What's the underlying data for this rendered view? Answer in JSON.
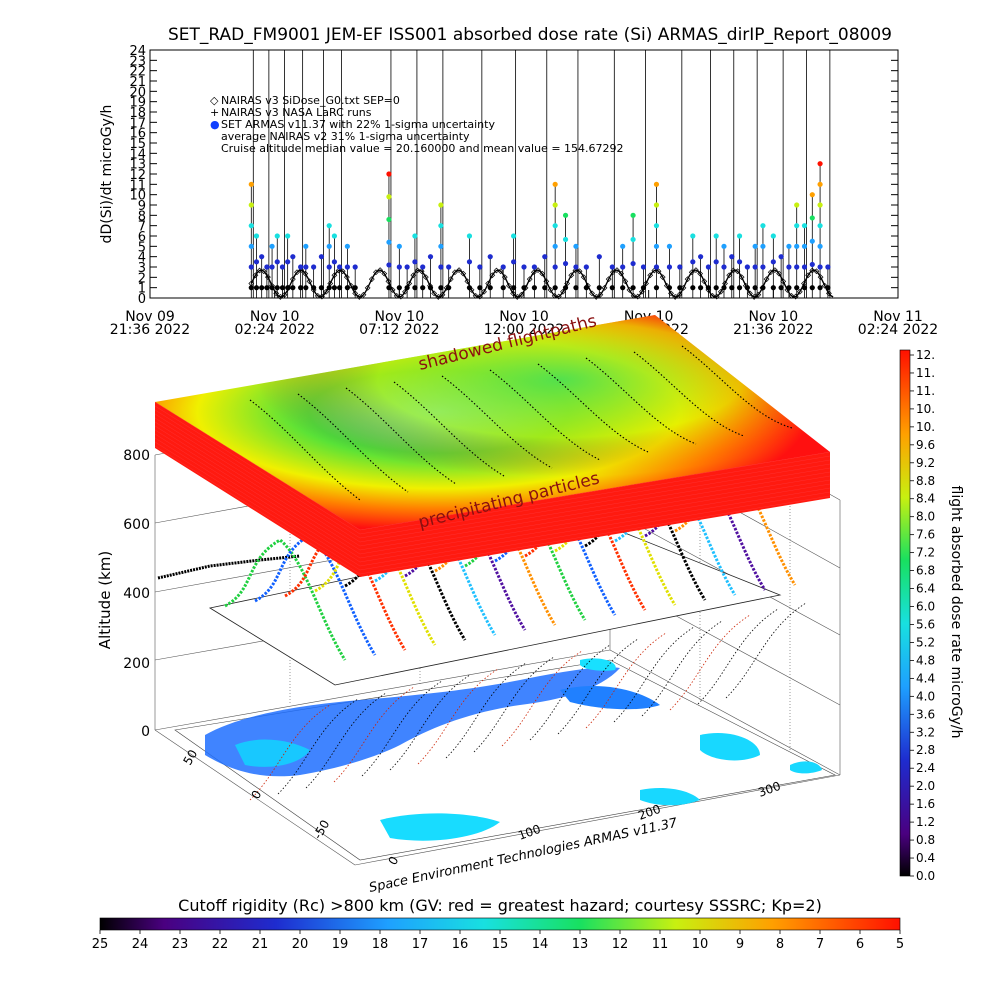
{
  "title": "SET_RAD_FM9001  JEM-EF ISS001 absorbed dose rate (Si) ARMAS_dirIP_Report_08009",
  "chart_data": [
    {
      "type": "line",
      "ylabel": "dD(Si)/dt microGy/h",
      "ylim": [
        0,
        24
      ],
      "yticks": [
        "0",
        "1",
        "2",
        "3",
        "4",
        "5",
        "6",
        "7",
        "8",
        "9",
        "10",
        "11",
        "12",
        "13",
        "14",
        "15",
        "16",
        "17",
        "18",
        "19",
        "20",
        "21",
        "22",
        "23",
        "24"
      ],
      "xticks": [
        {
          "d": "Nov 09",
          "t": "21:36 2022"
        },
        {
          "d": "Nov 10",
          "t": "02:24 2022"
        },
        {
          "d": "Nov 10",
          "t": "07:12 2022"
        },
        {
          "d": "Nov 10",
          "t": "12:00 2022"
        },
        {
          "d": "Nov 10",
          "t": "16:48 2022"
        },
        {
          "d": "Nov 10",
          "t": "21:36 2022"
        },
        {
          "d": "Nov 11",
          "t": "02:24 2022"
        }
      ],
      "xlim_hours": [
        0,
        28.8
      ],
      "legend": [
        "NAIRAS v3 SiDose_G0.txt SEP=0",
        "NAIRAS v3 NASA LaRC runs",
        "SET ARMAS v11.37 with 22% 1-sigma uncertainty",
        "average NAIRAS v2 31% 1-sigma uncertainty",
        "Cruise altitude median value = 20.160000 and mean value = 154.67292"
      ],
      "series": [
        {
          "name": "SET ARMAS v11.37 with 22% 1-sigma uncertainty",
          "marker": "dot",
          "points": [
            [
              3.9,
              11
            ],
            [
              4.1,
              6
            ],
            [
              4.3,
              4
            ],
            [
              4.5,
              3
            ],
            [
              4.7,
              5
            ],
            [
              4.9,
              6
            ],
            [
              5.1,
              3
            ],
            [
              5.3,
              6
            ],
            [
              5.5,
              4
            ],
            [
              5.8,
              3
            ],
            [
              6.0,
              5
            ],
            [
              6.3,
              3
            ],
            [
              6.6,
              4
            ],
            [
              6.9,
              7
            ],
            [
              7.1,
              6
            ],
            [
              7.3,
              3
            ],
            [
              7.6,
              5
            ],
            [
              7.9,
              3
            ],
            [
              9.2,
              12
            ],
            [
              9.6,
              5
            ],
            [
              9.9,
              3
            ],
            [
              10.2,
              6
            ],
            [
              10.5,
              3
            ],
            [
              10.8,
              4
            ],
            [
              11.2,
              9
            ],
            [
              11.5,
              3
            ],
            [
              12.3,
              6
            ],
            [
              12.7,
              3
            ],
            [
              13.1,
              4
            ],
            [
              13.6,
              3
            ],
            [
              14.0,
              6
            ],
            [
              14.4,
              3
            ],
            [
              14.8,
              3
            ],
            [
              15.2,
              4
            ],
            [
              15.6,
              11
            ],
            [
              16.0,
              8
            ],
            [
              16.4,
              5
            ],
            [
              16.8,
              3
            ],
            [
              17.3,
              4
            ],
            [
              17.8,
              3
            ],
            [
              18.2,
              5
            ],
            [
              18.6,
              8
            ],
            [
              19.0,
              3
            ],
            [
              19.5,
              11
            ],
            [
              20.0,
              5
            ],
            [
              20.4,
              3
            ],
            [
              20.9,
              6
            ],
            [
              21.2,
              4
            ],
            [
              21.5,
              3
            ],
            [
              21.8,
              6
            ],
            [
              22.1,
              5
            ],
            [
              22.4,
              4
            ],
            [
              22.7,
              6
            ],
            [
              23.0,
              3
            ],
            [
              23.3,
              5
            ],
            [
              23.6,
              7
            ],
            [
              24.0,
              6
            ],
            [
              24.3,
              4
            ],
            [
              24.6,
              5
            ],
            [
              24.9,
              9
            ],
            [
              25.2,
              7
            ],
            [
              25.5,
              10
            ],
            [
              25.8,
              13
            ],
            [
              26.1,
              3
            ]
          ]
        },
        {
          "name": "NAIRAS v3 SiDose_G0.txt SEP=0",
          "marker": "diamond",
          "points": "periodic ~1.5 h, 0–2.8 microGy/h from 3.9 h to 26.3 h"
        }
      ]
    },
    {
      "type": "surface",
      "zlabel": "Altitude (km)",
      "zticks": [
        "0",
        "200",
        "400",
        "600",
        "800"
      ],
      "lat_ticks": [
        "50",
        "0",
        "-50"
      ],
      "lon_ticks": [
        "0",
        "100",
        "200",
        "300"
      ],
      "annotations": [
        "shadowed flightpaths",
        "precipitating particles"
      ],
      "credit": "Space Environment Technologies ARMAS v11.37",
      "colorbar": {
        "label": "flight absorbed dose rate microGy/h",
        "ticks": [
          "0.0",
          "0.4",
          "0.8",
          "1.2",
          "1.6",
          "2.0",
          "2.4",
          "2.8",
          "3.2",
          "3.6",
          "4.0",
          "4.4",
          "4.8",
          "5.2",
          "5.6",
          "6.0",
          "6.4",
          "6.8",
          "7.2",
          "7.6",
          "8.0",
          "8.4",
          "8.8",
          "9.2",
          "9.6",
          "10.",
          "10.",
          "11.",
          "11.",
          "12."
        ]
      }
    },
    {
      "type": "colorbar",
      "label": "Cutoff rigidity (Rc) >800 km (GV: red = greatest hazard; courtesy SSSRC; Kp=2)",
      "ticks": [
        "25",
        "24",
        "23",
        "22",
        "21",
        "20",
        "19",
        "18",
        "17",
        "16",
        "15",
        "14",
        "13",
        "12",
        "11",
        "10",
        "9",
        "8",
        "7",
        "6",
        "5"
      ]
    }
  ]
}
